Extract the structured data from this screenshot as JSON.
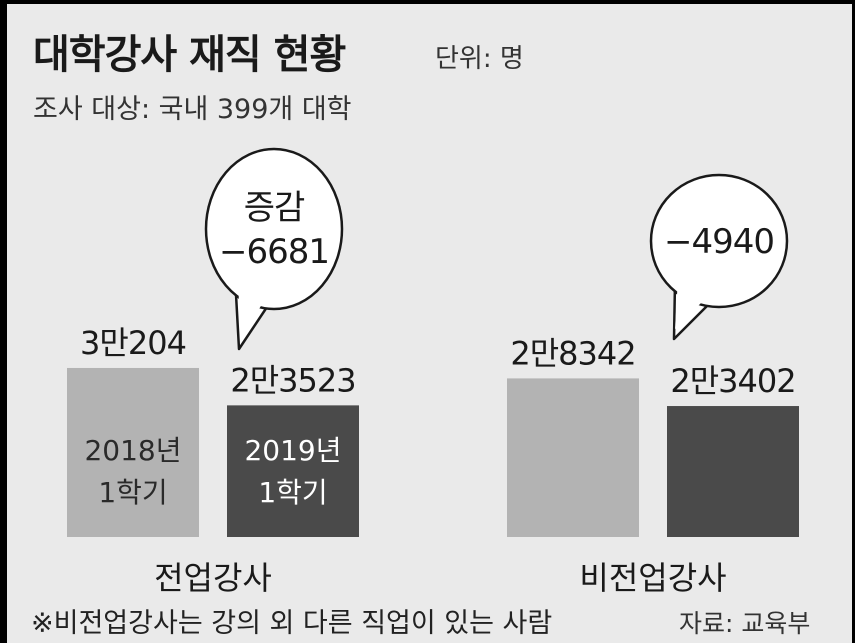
{
  "chart_data": {
    "type": "bar",
    "title": "대학강사 재직 현황",
    "unit_label": "단위: 명",
    "subtitle": "조사 대상: 국내 399개 대학",
    "categories": [
      "전업강사",
      "비전업강사"
    ],
    "series": [
      {
        "name": "2018년 1학기",
        "name_lines": [
          "2018년",
          "1학기"
        ],
        "color": "#b3b3b3",
        "values": [
          30204,
          28342
        ],
        "value_labels": [
          "3만204",
          "2만8342"
        ]
      },
      {
        "name": "2019년 1학기",
        "name_lines": [
          "2019년",
          "1학기"
        ],
        "color": "#4a4a4a",
        "values": [
          23523,
          23402
        ],
        "value_labels": [
          "2만3523",
          "2만3402"
        ]
      }
    ],
    "changes": [
      {
        "category": "전업강사",
        "lines": [
          "증감",
          "−6681"
        ],
        "value": -6681
      },
      {
        "category": "비전업강사",
        "lines": [
          "−4940"
        ],
        "value": -4940
      }
    ],
    "footnote": "※비전업강사는 강의 외 다른 직업이 있는 사람",
    "source": "자료: 교육부"
  }
}
